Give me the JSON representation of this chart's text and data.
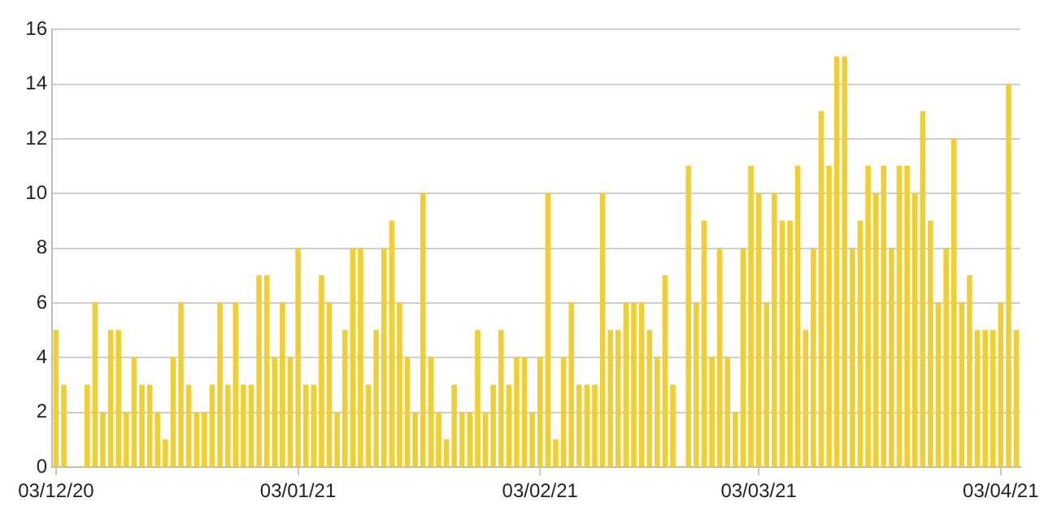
{
  "chart_data": {
    "type": "bar",
    "x": [
      "2020-12-03",
      "2020-12-04",
      "2020-12-05",
      "2020-12-06",
      "2020-12-07",
      "2020-12-08",
      "2020-12-09",
      "2020-12-10",
      "2020-12-11",
      "2020-12-12",
      "2020-12-13",
      "2020-12-14",
      "2020-12-15",
      "2020-12-16",
      "2020-12-17",
      "2020-12-18",
      "2020-12-19",
      "2020-12-20",
      "2020-12-21",
      "2020-12-22",
      "2020-12-23",
      "2020-12-24",
      "2020-12-25",
      "2020-12-26",
      "2020-12-27",
      "2020-12-28",
      "2020-12-29",
      "2020-12-30",
      "2020-12-31",
      "2021-01-01",
      "2021-01-02",
      "2021-01-03",
      "2021-01-04",
      "2021-01-05",
      "2021-01-06",
      "2021-01-07",
      "2021-01-08",
      "2021-01-09",
      "2021-01-10",
      "2021-01-11",
      "2021-01-12",
      "2021-01-13",
      "2021-01-14",
      "2021-01-15",
      "2021-01-16",
      "2021-01-17",
      "2021-01-18",
      "2021-01-19",
      "2021-01-20",
      "2021-01-21",
      "2021-01-22",
      "2021-01-23",
      "2021-01-24",
      "2021-01-25",
      "2021-01-26",
      "2021-01-27",
      "2021-01-28",
      "2021-01-29",
      "2021-01-30",
      "2021-01-31",
      "2021-02-01",
      "2021-02-02",
      "2021-02-03",
      "2021-02-04",
      "2021-02-05",
      "2021-02-06",
      "2021-02-07",
      "2021-02-08",
      "2021-02-09",
      "2021-02-10",
      "2021-02-11",
      "2021-02-12",
      "2021-02-13",
      "2021-02-14",
      "2021-02-15",
      "2021-02-16",
      "2021-02-17",
      "2021-02-18",
      "2021-02-19",
      "2021-02-20",
      "2021-02-21",
      "2021-02-22",
      "2021-02-23",
      "2021-02-24",
      "2021-02-25",
      "2021-02-26",
      "2021-02-27",
      "2021-02-28",
      "2021-03-01",
      "2021-03-02",
      "2021-03-03",
      "2021-03-04",
      "2021-03-05",
      "2021-03-06",
      "2021-03-07",
      "2021-03-08",
      "2021-03-09",
      "2021-03-10",
      "2021-03-11",
      "2021-03-12",
      "2021-03-13",
      "2021-03-14",
      "2021-03-15",
      "2021-03-16",
      "2021-03-17",
      "2021-03-18",
      "2021-03-19",
      "2021-03-20",
      "2021-03-21",
      "2021-03-22",
      "2021-03-23",
      "2021-03-24",
      "2021-03-25",
      "2021-03-26",
      "2021-03-27",
      "2021-03-28",
      "2021-03-29",
      "2021-03-30",
      "2021-03-31",
      "2021-04-01",
      "2021-04-02",
      "2021-04-03",
      "2021-04-04",
      "2021-04-05"
    ],
    "values": [
      5,
      3,
      0,
      0,
      3,
      6,
      2,
      5,
      5,
      2,
      4,
      3,
      3,
      2,
      1,
      4,
      6,
      3,
      2,
      2,
      3,
      6,
      3,
      6,
      3,
      3,
      7,
      7,
      4,
      6,
      4,
      8,
      3,
      3,
      7,
      6,
      2,
      5,
      8,
      8,
      3,
      5,
      8,
      9,
      6,
      4,
      2,
      10,
      4,
      2,
      1,
      3,
      2,
      2,
      5,
      2,
      3,
      5,
      3,
      4,
      4,
      2,
      4,
      10,
      1,
      4,
      6,
      3,
      3,
      3,
      10,
      5,
      5,
      6,
      6,
      6,
      5,
      4,
      7,
      3,
      0,
      11,
      6,
      9,
      4,
      8,
      4,
      2,
      8,
      11,
      10,
      6,
      10,
      9,
      9,
      11,
      5,
      8,
      13,
      11,
      15,
      15,
      8,
      9,
      11,
      10,
      11,
      8,
      11,
      11,
      10,
      13,
      9,
      6,
      8,
      12,
      6,
      7,
      5,
      5,
      5,
      6,
      14,
      5
    ],
    "color": "#f2cf2f",
    "xlim": [
      "2020-12-02T12:00",
      "2021-04-05T12:00"
    ],
    "xticks": [
      {
        "value": "2020-12-03",
        "label": "03/12/20"
      },
      {
        "value": "2021-01-03",
        "label": "03/01/21"
      },
      {
        "value": "2021-02-03",
        "label": "03/02/21"
      },
      {
        "value": "2021-03-03",
        "label": "03/03/21"
      },
      {
        "value": "2021-04-03",
        "label": "03/04/21"
      }
    ],
    "ylim": [
      0,
      16
    ],
    "yticks": [
      0,
      2,
      4,
      6,
      8,
      10,
      12,
      14,
      16
    ],
    "grid": "y",
    "legend": false
  }
}
